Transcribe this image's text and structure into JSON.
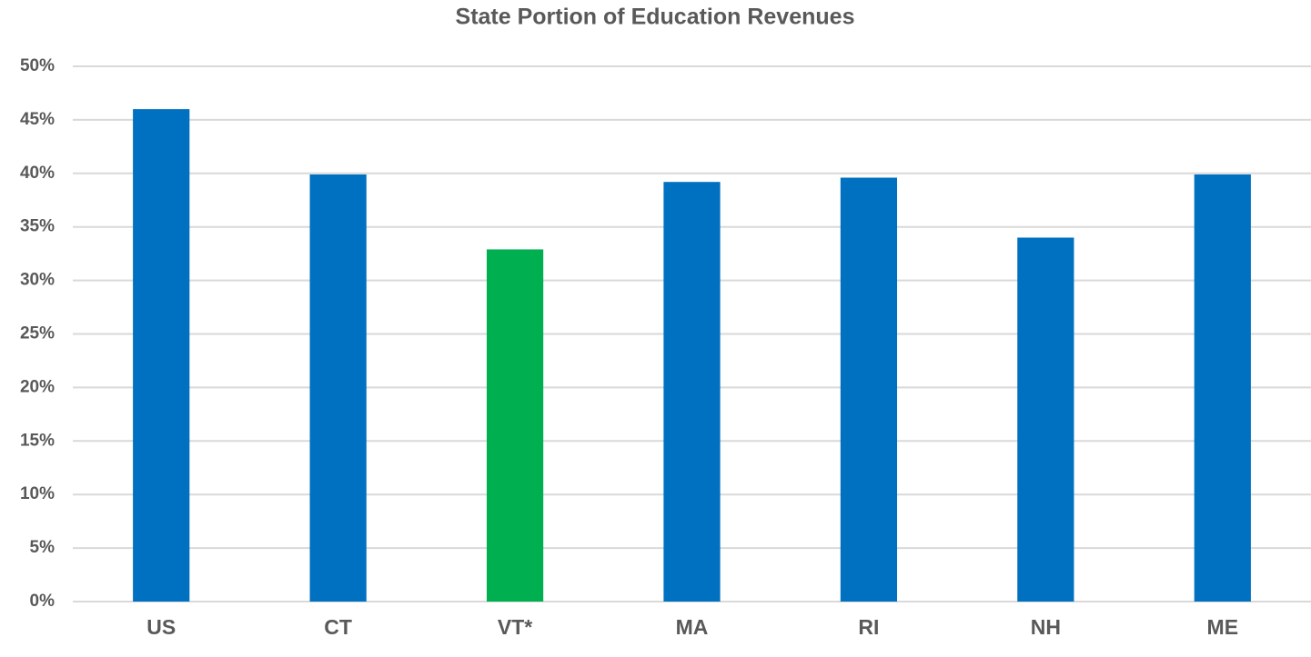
{
  "chart_data": {
    "type": "bar",
    "title": "State Portion of Education Revenues",
    "categories": [
      "US",
      "CT",
      "VT*",
      "MA",
      "RI",
      "NH",
      "ME"
    ],
    "values": [
      46.0,
      39.9,
      32.9,
      39.2,
      39.6,
      34.0,
      39.9
    ],
    "colors": [
      "#0070c0",
      "#0070c0",
      "#00b050",
      "#0070c0",
      "#0070c0",
      "#0070c0",
      "#0070c0"
    ],
    "ylim": [
      0,
      50
    ],
    "yticks": [
      {
        "value": 0,
        "label": "0%"
      },
      {
        "value": 5,
        "label": "5%"
      },
      {
        "value": 10,
        "label": "10%"
      },
      {
        "value": 15,
        "label": "15%"
      },
      {
        "value": 20,
        "label": "20%"
      },
      {
        "value": 25,
        "label": "25%"
      },
      {
        "value": 30,
        "label": "30%"
      },
      {
        "value": 35,
        "label": "35%"
      },
      {
        "value": 40,
        "label": "40%"
      },
      {
        "value": 45,
        "label": "45%"
      },
      {
        "value": 50,
        "label": "50%"
      }
    ],
    "grid": true
  }
}
